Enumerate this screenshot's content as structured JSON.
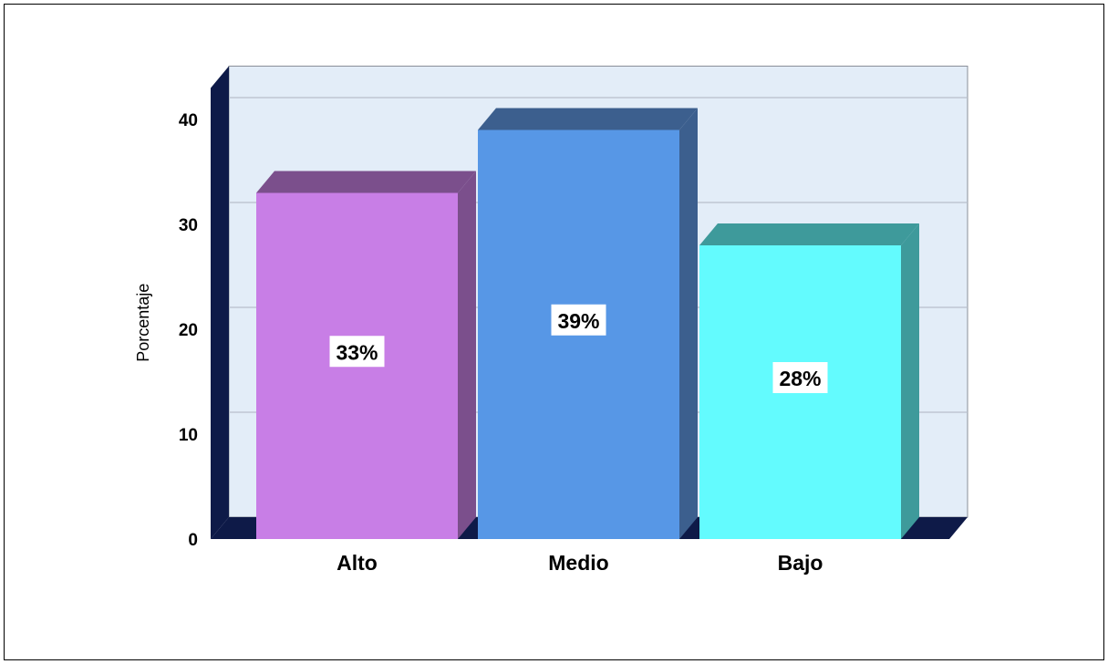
{
  "chart_data": {
    "type": "bar",
    "categories": [
      "Alto",
      "Medio",
      "Bajo"
    ],
    "values": [
      33,
      39,
      28
    ],
    "data_labels": [
      "33%",
      "39%",
      "28%"
    ],
    "xlabel": "",
    "ylabel": "Porcentaje",
    "ylim": [
      0,
      43
    ],
    "yticks": [
      "0",
      "10",
      "20",
      "30",
      "40"
    ],
    "grid": true,
    "style": "3d",
    "colors": {
      "bars": [
        "#c87ee6",
        "#5797e6",
        "#63fbfe"
      ],
      "bar_sides": [
        "#7b4f8c",
        "#3c5f8e",
        "#3e9a9b"
      ],
      "plot_background": "#e3edf8",
      "floor_and_wall": "#0e1a48",
      "gridline": "#b7c0cc"
    }
  }
}
